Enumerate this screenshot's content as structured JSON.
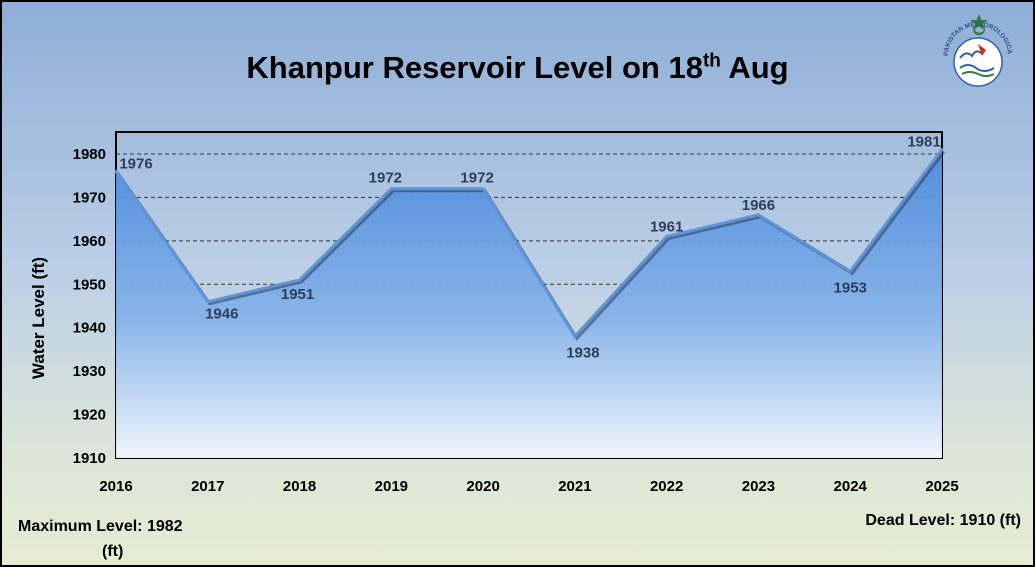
{
  "chart_data": {
    "type": "area",
    "title": "Khanpur Reservoir Level on 18",
    "title_sup": "th",
    "title_suffix": " Aug",
    "ylabel": "Water Level (ft)",
    "xlabel": "",
    "categories": [
      "2016",
      "2017",
      "2018",
      "2019",
      "2020",
      "2021",
      "2022",
      "2023",
      "2024",
      "2025"
    ],
    "values": [
      1976,
      1946,
      1951,
      1972,
      1972,
      1938,
      1961,
      1966,
      1953,
      1981
    ],
    "data_labels": [
      "1976",
      "1946",
      "1951",
      "1972",
      "1972",
      "1938",
      "1961",
      "1966",
      "1953",
      "1981"
    ],
    "ylim": [
      1910,
      1980
    ],
    "yticks": [
      1910,
      1920,
      1930,
      1940,
      1950,
      1960,
      1970,
      1980
    ],
    "gridlines": [
      1950,
      1960,
      1970,
      1980
    ],
    "grid": "dashed",
    "fill_color_top": "#4f8fdc",
    "fill_color_bottom": "#e8f0fb",
    "line_color": "#5f94d8"
  },
  "notes": {
    "max_level_label": "Maximum Level:",
    "max_level_value": "1982",
    "max_level_unit": "(ft)",
    "dead_level_label": "Dead Level:",
    "dead_level_value": "1910 (ft)"
  },
  "logo": {
    "icon": "pakistan-meteorological-department-logo",
    "text": "PAKISTAN METEOROLOGICAL DEPARTMENT"
  }
}
